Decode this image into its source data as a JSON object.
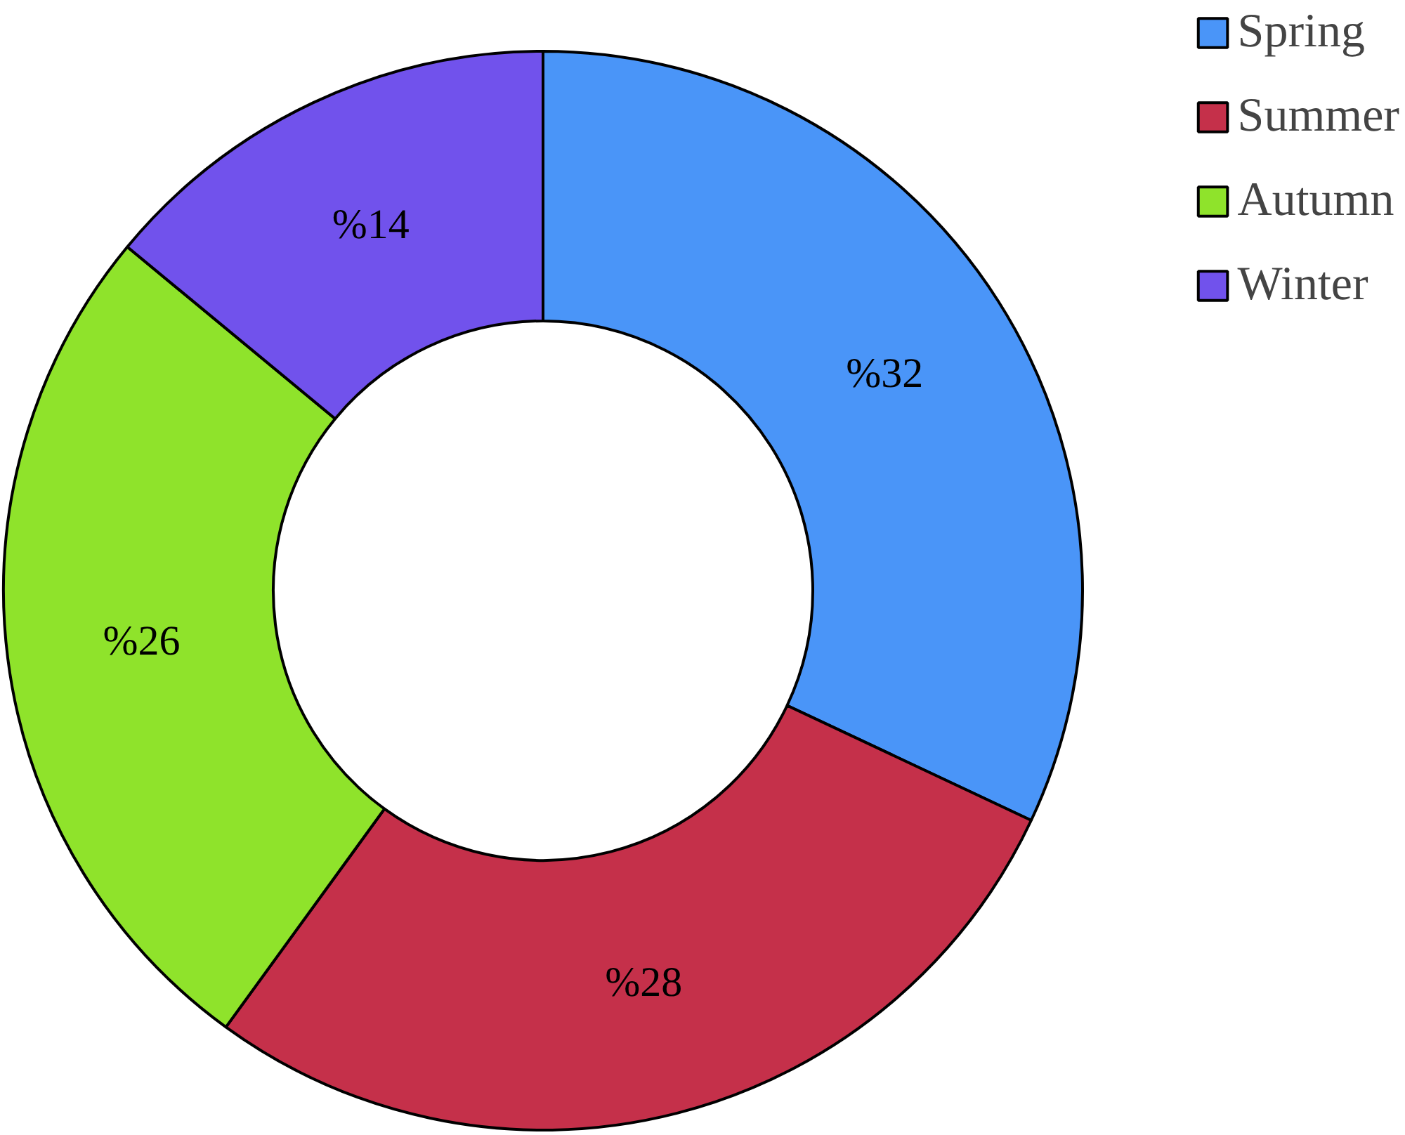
{
  "chart_data": {
    "type": "donut",
    "categories": [
      "Spring",
      "Summer",
      "Autumn",
      "Winter"
    ],
    "values": [
      32,
      28,
      26,
      14
    ],
    "colors": [
      "#4a95f8",
      "#c5304a",
      "#8fe32b",
      "#7152ec"
    ],
    "value_labels": [
      "%32",
      "%28",
      "%26",
      "%14"
    ],
    "legend": "top right"
  }
}
